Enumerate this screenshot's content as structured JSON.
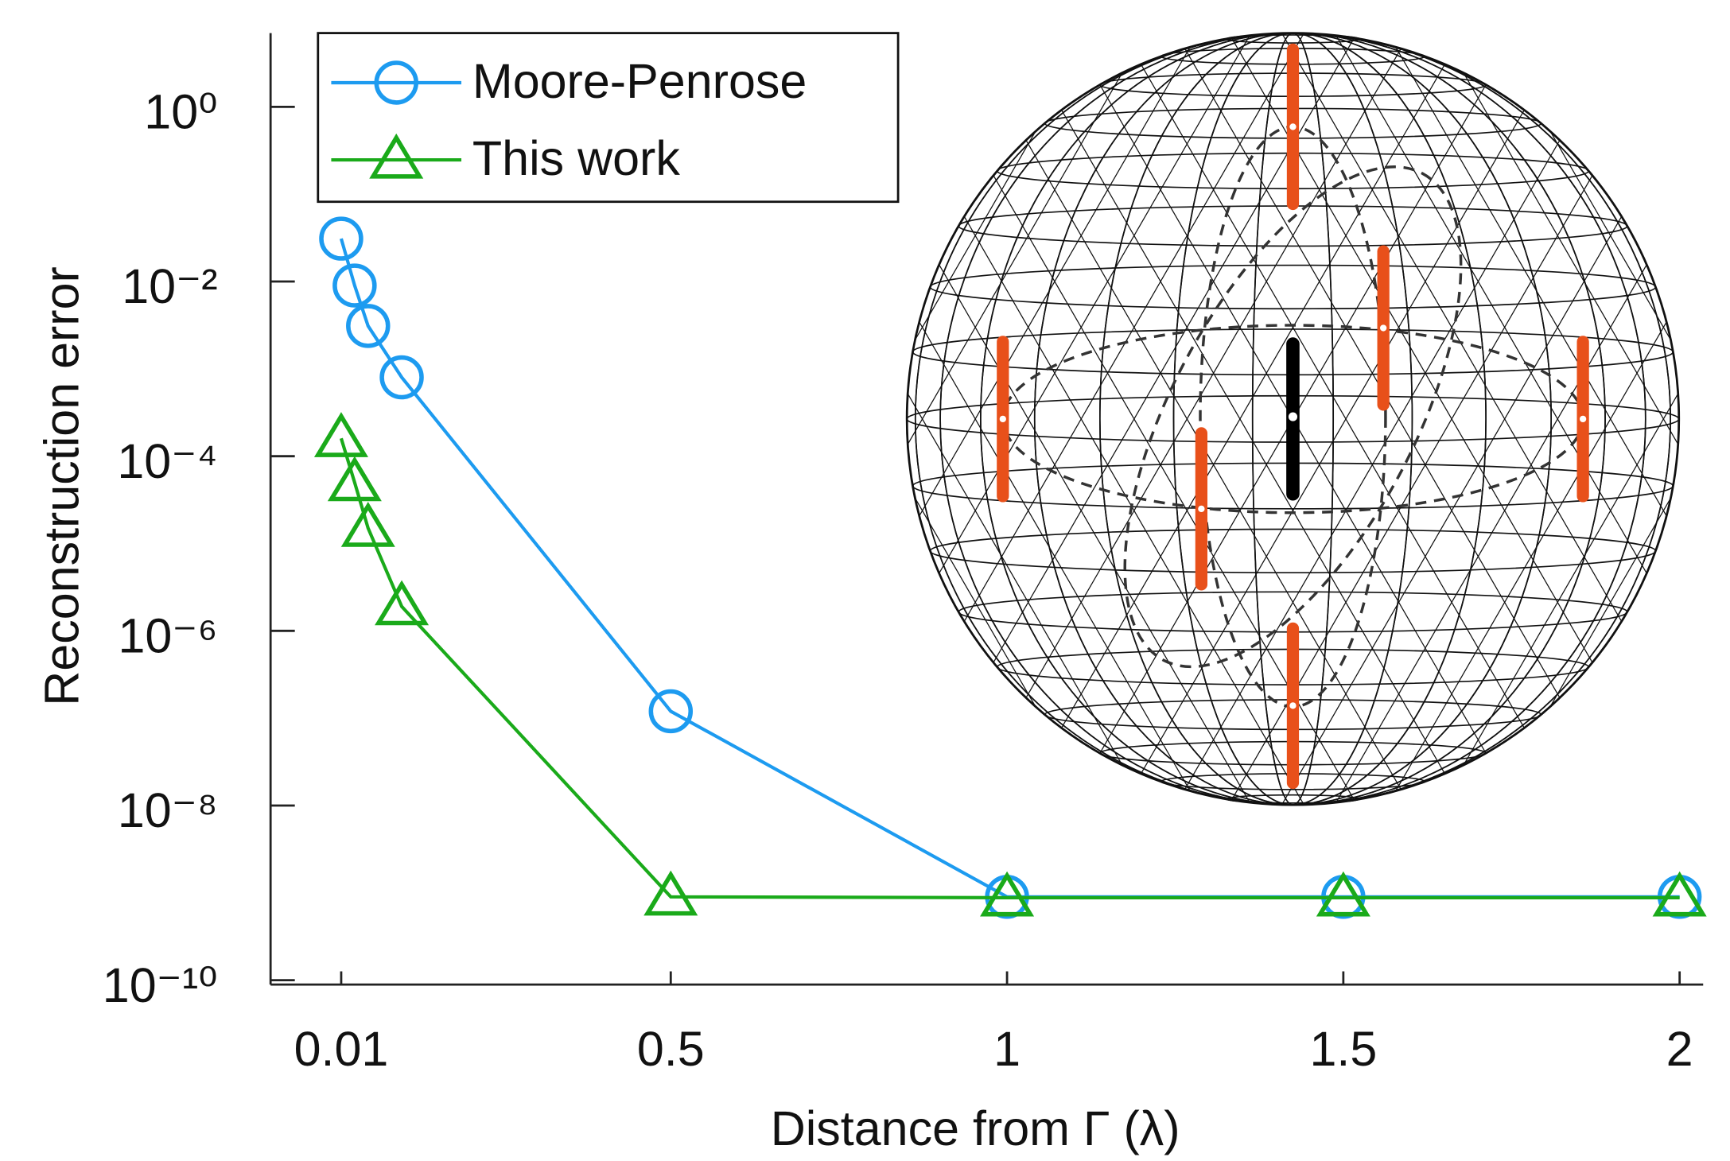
{
  "chart_data": {
    "type": "line",
    "x_label": "Distance from Γ (λ)",
    "y_label": "Reconstruction error",
    "y_scale": "log",
    "xlim": [
      -0.095,
      2.035
    ],
    "ylim": [
      8.9e-11,
      7
    ],
    "xticks": [
      0.01,
      0.5,
      1,
      1.5,
      2
    ],
    "yticks": [
      {
        "value": 1,
        "label": "10⁰"
      },
      {
        "value": 0.01,
        "label": "10⁻²"
      },
      {
        "value": 0.0001,
        "label": "10⁻⁴"
      },
      {
        "value": 1e-06,
        "label": "10⁻⁶"
      },
      {
        "value": 1e-08,
        "label": "10⁻⁸"
      },
      {
        "value": 1e-10,
        "label": "10⁻¹⁰"
      }
    ],
    "legend": "upper left",
    "series": [
      {
        "name": "Moore-Penrose",
        "color": "#1d9bf0",
        "marker": "circle",
        "x": [
          0.01,
          0.03,
          0.05,
          0.1,
          0.5,
          1,
          1.5,
          2
        ],
        "values": [
          0.031,
          0.009,
          0.0031,
          0.0008,
          1.2e-07,
          9e-10,
          9e-10,
          9e-10
        ]
      },
      {
        "name": "This work",
        "color": "#1aaa1a",
        "marker": "triangle",
        "x": [
          0.01,
          0.03,
          0.05,
          0.1,
          0.5,
          1,
          1.5,
          2
        ],
        "values": [
          0.00016,
          5e-05,
          1.5e-05,
          1.9e-06,
          9e-10,
          8.8e-10,
          8.8e-10,
          8.8e-10
        ]
      }
    ]
  }
}
